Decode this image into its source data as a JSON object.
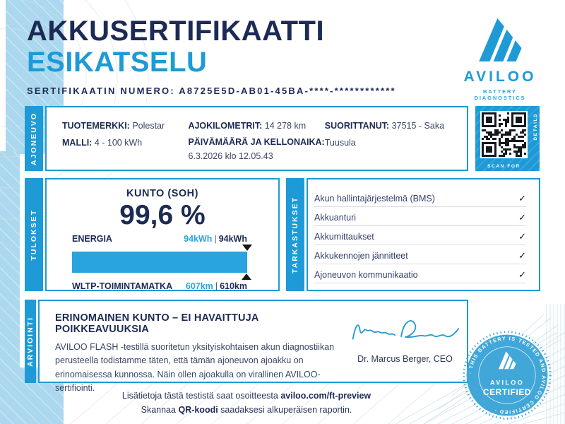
{
  "page": {
    "title_line1": "AKKUSERTIFIKAATTI",
    "title_line2": "ESIKATSELU",
    "certificate_number_label": "SERTIFIKAATIN NUMERO:",
    "certificate_number": "A8725E5D-AB01-45BA-****-************"
  },
  "brand": {
    "name": "AVILOO",
    "tagline": "BATTERY DIAGNOSTICS",
    "accent_blue": "#1E9AD6",
    "navy": "#1C2A55",
    "pale_blue": "#ABD8EE"
  },
  "vehicle_section": {
    "tab_label": "AJONEUVO",
    "fields": [
      {
        "label": "TUOTEMERKKI:",
        "value": "Polestar"
      },
      {
        "label": "MALLI:",
        "value": "4 - 100 kWh"
      },
      {
        "label": "AJOKILOMETRIT:",
        "value": "14 278 km"
      },
      {
        "label": "PÄIVÄMÄÄRÄ JA KELLONAIKA:",
        "value": "6.3.2026 klo 12.05.43"
      },
      {
        "label": "SUORITTANUT:",
        "value": "37515 - Saka Tuusula"
      }
    ]
  },
  "qr": {
    "scan_label": "SCAN FOR",
    "details_label": "DETAILS"
  },
  "results_section": {
    "tab_label": "TULOKSET",
    "soh_title": "KUNTO (SOH)",
    "soh_value": "99,6 %",
    "separator": "|",
    "metrics": [
      {
        "label": "ENERGIA",
        "measured": "94kWh",
        "nominal": "94kWh",
        "percent": 100
      },
      {
        "label": "WLTP-TOIMINTAMATKA",
        "measured": "607km",
        "nominal": "610km",
        "percent": 99.5
      }
    ]
  },
  "checks_section": {
    "tab_label": "TARKASTUKSET",
    "check_glyph": "✓",
    "items": [
      {
        "label": "Akun hallintajärjestelmä (BMS)",
        "status": "passed"
      },
      {
        "label": "Akkuanturi",
        "status": "passed"
      },
      {
        "label": "Akkumittaukset",
        "status": "passed"
      },
      {
        "label": "Akkukennojen jännitteet",
        "status": "passed"
      },
      {
        "label": "Ajoneuvon kommunikaatio",
        "status": "passed"
      }
    ]
  },
  "assessment_section": {
    "tab_label": "ARVIOINTI",
    "headline": "ERINOMAINEN KUNTO – EI HAVAITTUJA POIKKEAVUUKSIA",
    "body": "AVILOO FLASH -testillä suoritetun yksityiskohtaisen akun diagnostiikan perusteella todistamme täten, että tämän ajoneuvon ajoakku on erinomaisessa kunnossa. Näin ollen ajoakulla on virallinen AVILOO-sertifiointi.",
    "signatory": "Dr. Marcus Berger, CEO"
  },
  "badge": {
    "ring_text": "· THIS BATTERY IS TESTED AND AVILOO CERTIFIED ·",
    "brand": "AVILOO",
    "label": "CERTIFIED"
  },
  "footer": {
    "line1_prefix": "Lisätietoja tästä testistä saat osoitteesta ",
    "line1_bold": "aviloo.com/ft-preview",
    "line2_prefix": "Skannaa ",
    "line2_bold": "QR-koodi",
    "line2_suffix": " saadaksesi alkuperäisen raportin."
  }
}
